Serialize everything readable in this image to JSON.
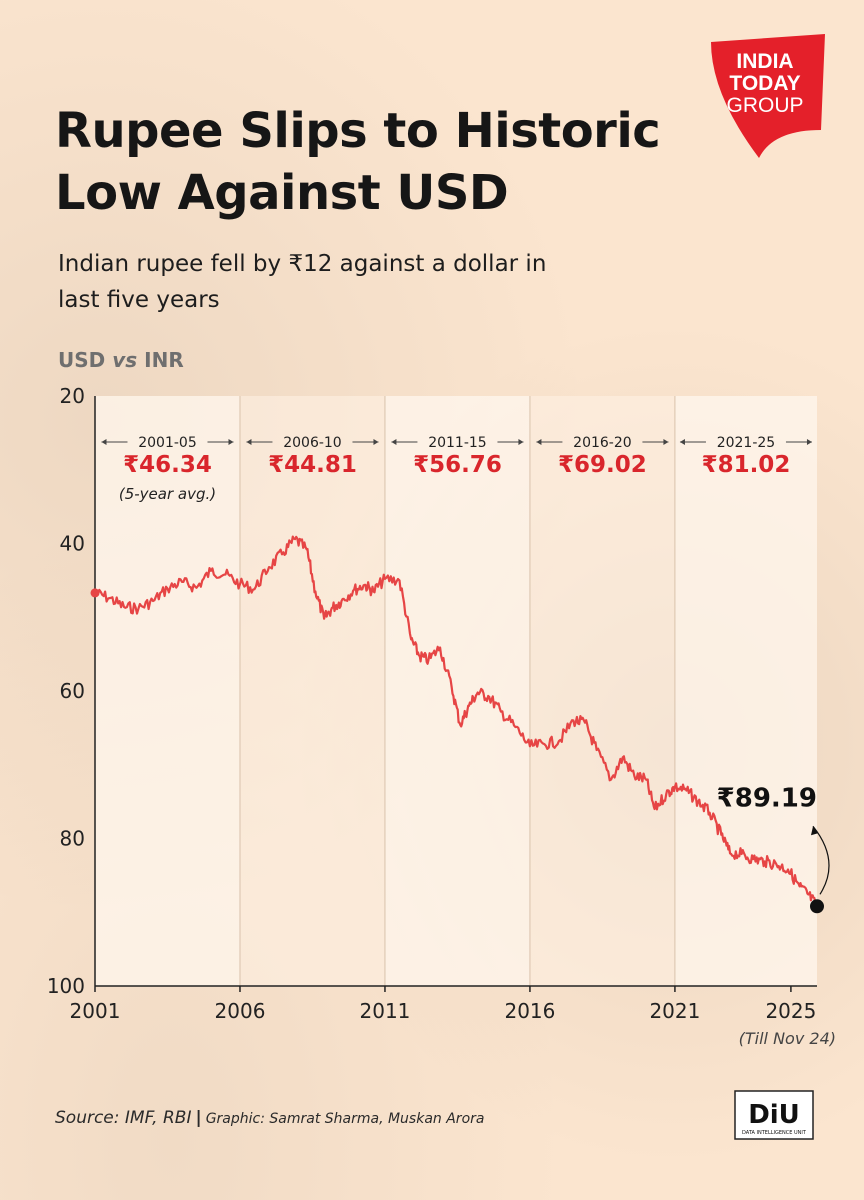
{
  "header": {
    "title": "Rupee Slips to Historic Low Against USD",
    "subtitle": "Indian rupee fell by ₹12 against a dollar in last five years"
  },
  "brand": {
    "logo_line1": "INDIA",
    "logo_line2": "TODAY",
    "logo_line3": "GROUP",
    "logo_color": "#e4202a",
    "unit_logo": "DiU",
    "unit_logo_sub": "DATA INTELLIGENCE UNIT"
  },
  "footer": {
    "source_label": "Source: IMF, RBI",
    "graphic_label": "Graphic: Samrat Sharma, Muskan Arora"
  },
  "chart_data": {
    "type": "line",
    "title": "USD vs INR",
    "title_parts": [
      "USD",
      "vs",
      "INR"
    ],
    "x_ticks": [
      "2001",
      "2006",
      "2011",
      "2016",
      "2021",
      "2025"
    ],
    "x_note": "(Till Nov 24)",
    "xlim": [
      2001,
      2025.9
    ],
    "ylim": [
      20,
      100
    ],
    "y_inverted": true,
    "y_ticks": [
      20,
      40,
      60,
      80,
      100
    ],
    "line_color": "#e64545",
    "annotation_color": "#d9262c",
    "periods": [
      {
        "range": "2001-05",
        "avg": "₹46.34",
        "note": "(5-year avg.)"
      },
      {
        "range": "2006-10",
        "avg": "₹44.81"
      },
      {
        "range": "2011-15",
        "avg": "₹56.76"
      },
      {
        "range": "2016-20",
        "avg": "₹69.02"
      },
      {
        "range": "2021-25",
        "avg": "₹81.02"
      }
    ],
    "last_label": "₹89.19",
    "series": [
      {
        "x": [
          2001.0,
          2001.5,
          2002.0,
          2002.5,
          2003.0,
          2003.5,
          2004.0,
          2004.5,
          2005.0,
          2005.5,
          2006.0,
          2006.5,
          2007.0,
          2007.5,
          2007.9,
          2008.3,
          2008.6,
          2008.9,
          2009.2,
          2009.5,
          2009.9,
          2010.3,
          2010.6,
          2011.0,
          2011.5,
          2011.9,
          2012.2,
          2012.5,
          2012.9,
          2013.3,
          2013.6,
          2013.9,
          2014.2,
          2014.6,
          2015.0,
          2015.5,
          2016.0,
          2016.5,
          2017.0,
          2017.5,
          2017.9,
          2018.3,
          2018.8,
          2019.2,
          2019.6,
          2020.0,
          2020.3,
          2020.7,
          2021.0,
          2021.4,
          2021.8,
          2022.2,
          2022.6,
          2022.9,
          2023.3,
          2023.7,
          2024.1,
          2024.5,
          2024.9,
          2025.3,
          2025.6,
          2025.9
        ],
        "y": [
          46.7,
          47.4,
          48.6,
          48.8,
          47.8,
          46.1,
          45.2,
          46.0,
          43.7,
          44.2,
          45.5,
          46.2,
          43.2,
          41.2,
          39.4,
          40.8,
          46.5,
          50.2,
          48.7,
          47.8,
          46.4,
          45.6,
          46.5,
          44.8,
          45.0,
          53.0,
          55.3,
          55.8,
          54.1,
          59.5,
          64.6,
          62.0,
          60.2,
          60.8,
          62.8,
          64.9,
          67.5,
          67.2,
          66.8,
          64.0,
          64.3,
          68.0,
          72.0,
          69.0,
          71.5,
          72.0,
          76.0,
          74.0,
          73.0,
          73.5,
          75.0,
          76.5,
          79.5,
          82.0,
          82.1,
          82.8,
          83.1,
          83.5,
          84.2,
          86.5,
          87.6,
          89.19
        ]
      }
    ]
  }
}
